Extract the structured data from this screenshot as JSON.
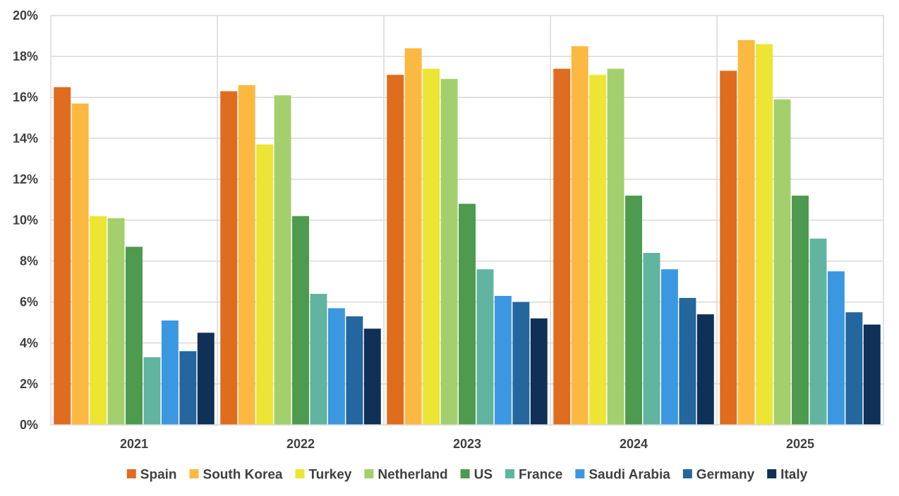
{
  "chart_data": {
    "type": "bar",
    "title": "",
    "xlabel": "",
    "ylabel": "",
    "ylim": [
      0,
      20
    ],
    "y_tick_step": 2,
    "y_tick_suffix": "%",
    "grid": true,
    "legend_position": "bottom",
    "categories": [
      "2021",
      "2022",
      "2023",
      "2024",
      "2025"
    ],
    "series": [
      {
        "name": "Spain",
        "color": "#E06C1F",
        "values": [
          16.5,
          16.3,
          17.1,
          17.4,
          17.3
        ]
      },
      {
        "name": "South Korea",
        "color": "#FBB941",
        "values": [
          15.7,
          16.6,
          18.4,
          18.5,
          18.8
        ]
      },
      {
        "name": "Turkey",
        "color": "#EDE533",
        "values": [
          10.2,
          13.7,
          17.4,
          17.1,
          18.6
        ]
      },
      {
        "name": "Netherland",
        "color": "#A3D06C",
        "values": [
          10.1,
          16.1,
          16.9,
          17.4,
          15.9
        ]
      },
      {
        "name": "US",
        "color": "#4E9A4E",
        "values": [
          8.7,
          10.2,
          10.8,
          11.2,
          11.2
        ]
      },
      {
        "name": "France",
        "color": "#60B4A0",
        "values": [
          3.3,
          6.4,
          7.6,
          8.4,
          9.1
        ]
      },
      {
        "name": "Saudi Arabia",
        "color": "#3B98E0",
        "values": [
          5.1,
          5.7,
          6.3,
          7.6,
          7.5
        ]
      },
      {
        "name": "Germany",
        "color": "#23679E",
        "values": [
          3.6,
          5.3,
          6.0,
          6.2,
          5.5
        ]
      },
      {
        "name": "Italy",
        "color": "#0F3057",
        "values": [
          4.5,
          4.7,
          5.2,
          5.4,
          4.9
        ]
      }
    ]
  }
}
